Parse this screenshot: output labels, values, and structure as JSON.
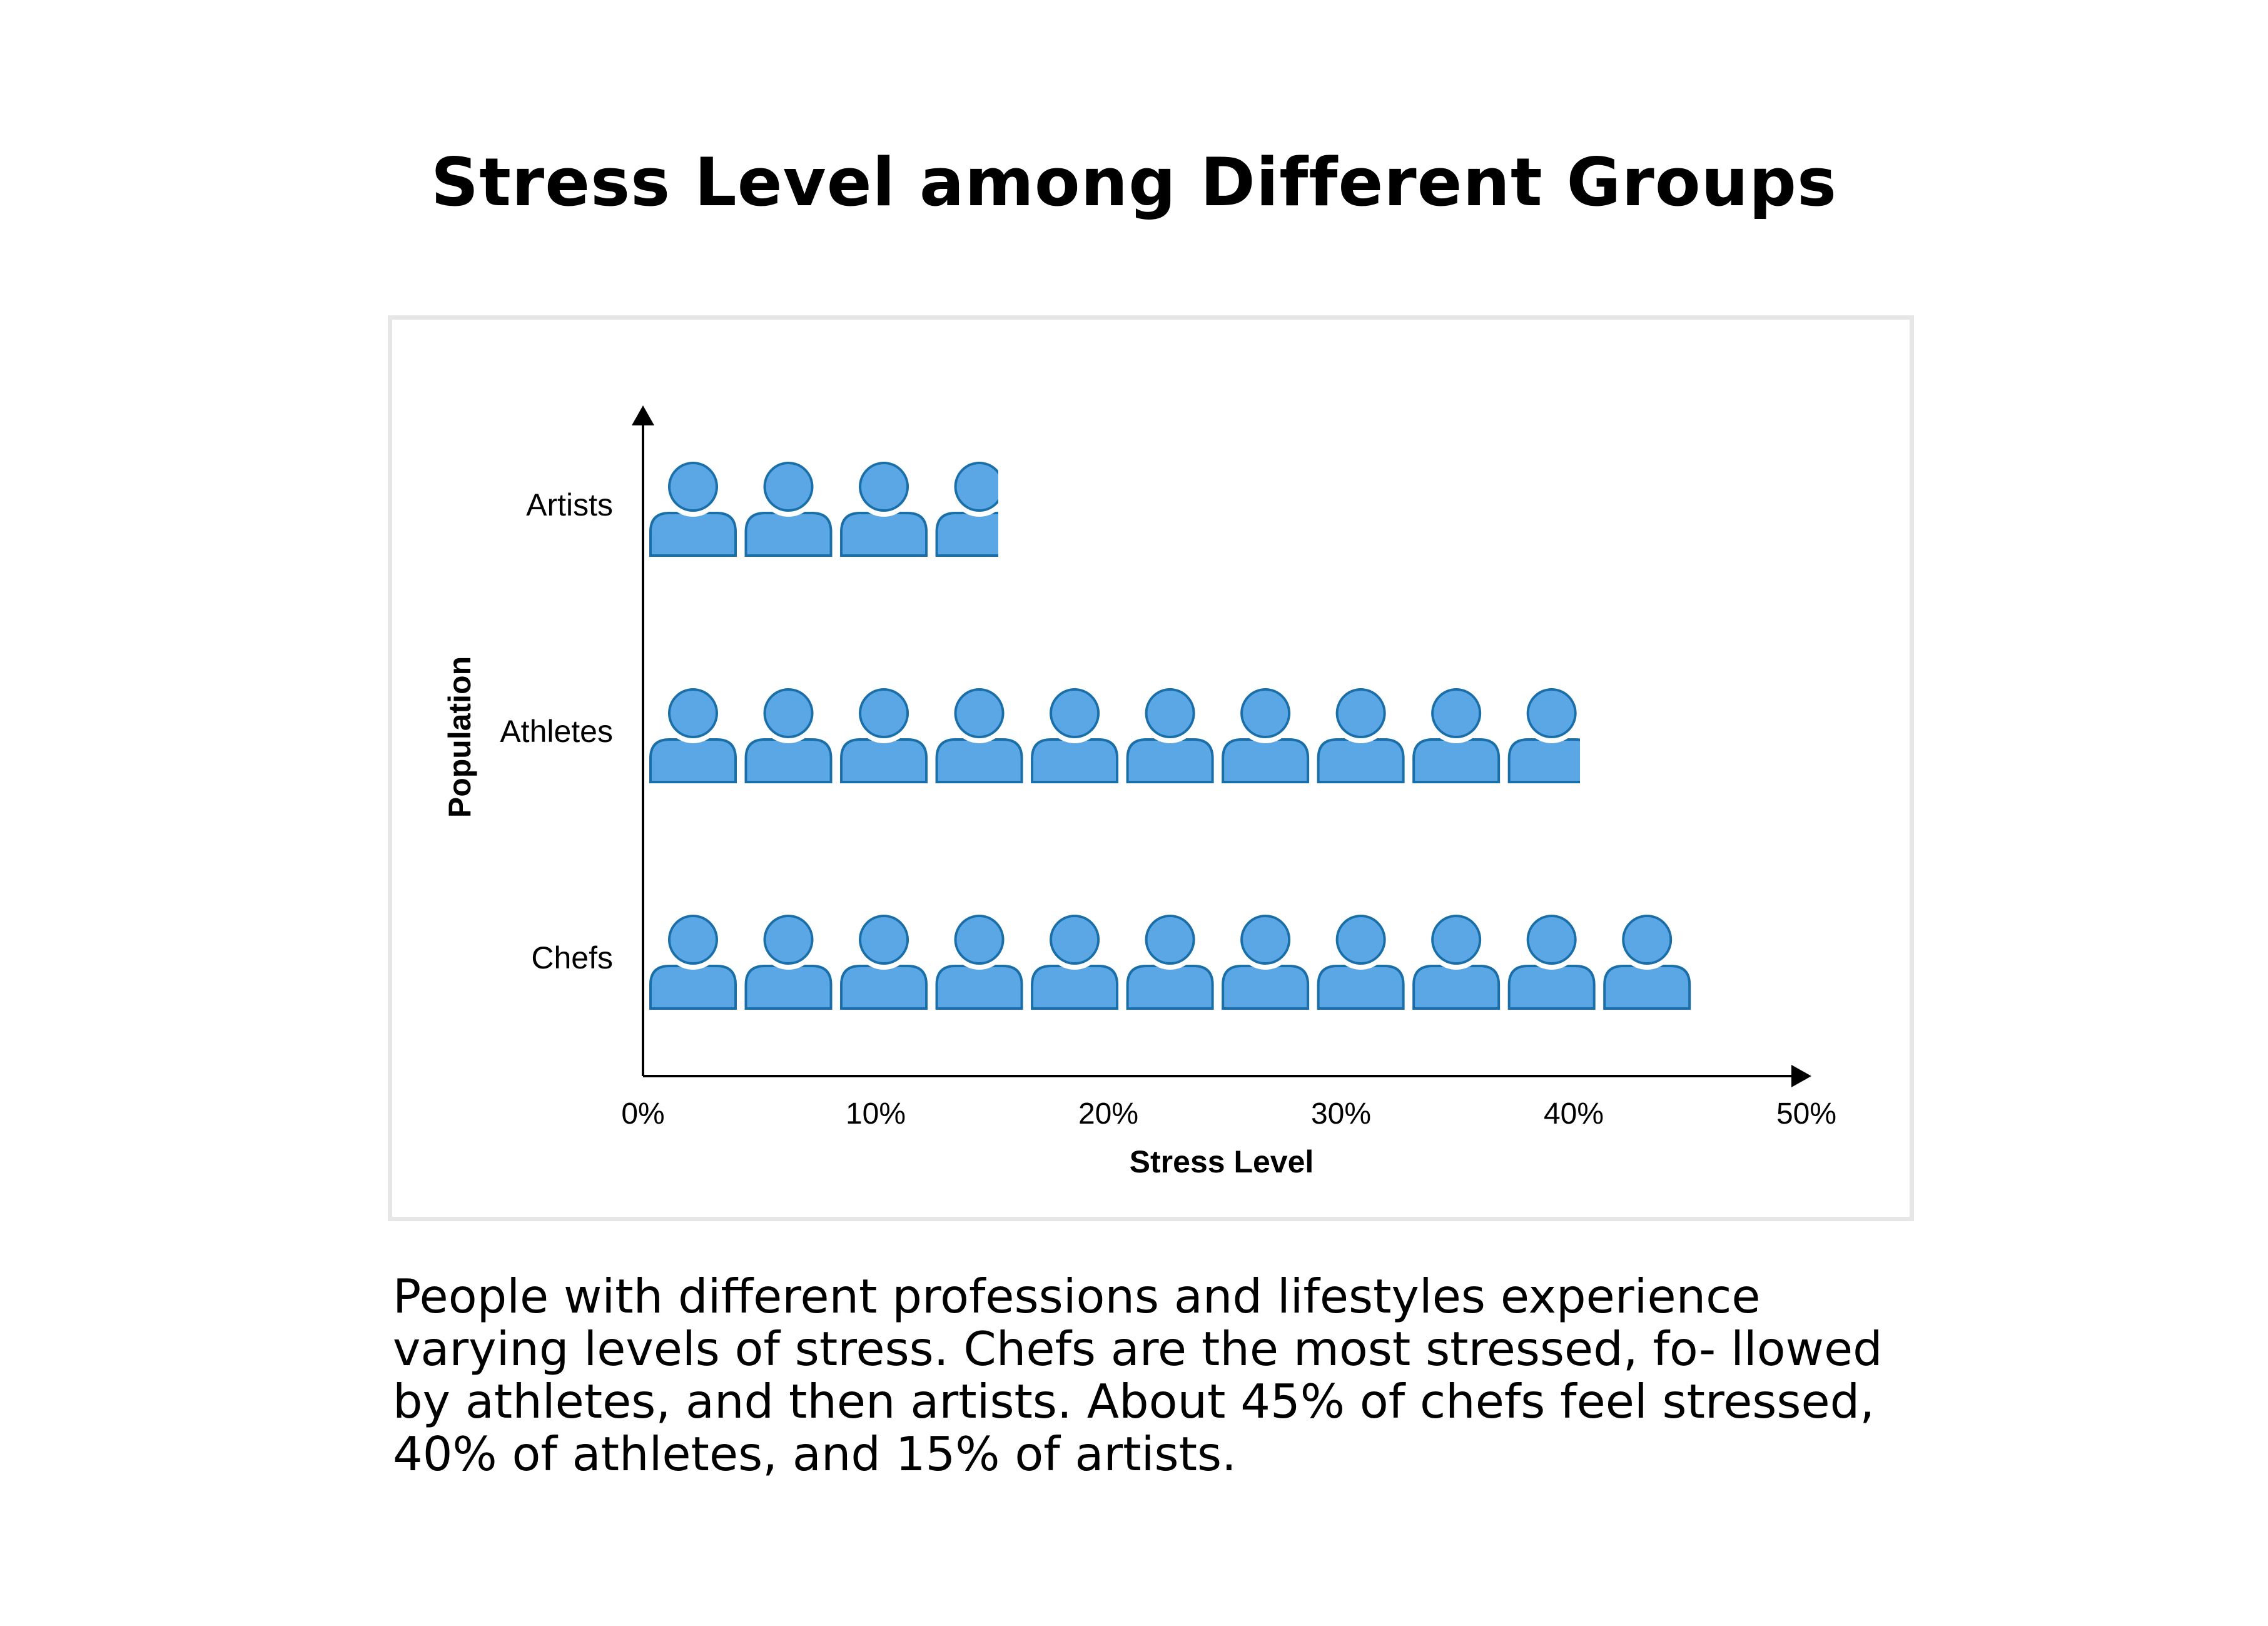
{
  "title": "Stress Level among Different Groups",
  "caption": "People with different professions and lifestyles experience varying levels of stress. Chefs are the most stressed, fo- llowed by athletes, and then artists. About 45% of chefs feel stressed, 40% of athletes, and 15% of artists.",
  "chart_data": {
    "type": "bar",
    "style": "pictograph",
    "icon": "person-icon",
    "icon_value_pct": 4.1,
    "categories": [
      "Artists",
      "Athletes",
      "Chefs"
    ],
    "values": [
      15,
      40,
      45
    ],
    "xlabel": "Stress Level",
    "ylabel": "Population",
    "xlim": [
      0,
      50
    ],
    "xticks": [
      "0%",
      "10%",
      "20%",
      "30%",
      "40%",
      "50%"
    ],
    "grid": false,
    "legend": "none",
    "colors": {
      "icon_fill": "#5ba7e6",
      "icon_stroke": "#1b6fa8",
      "axis": "#000000"
    }
  }
}
